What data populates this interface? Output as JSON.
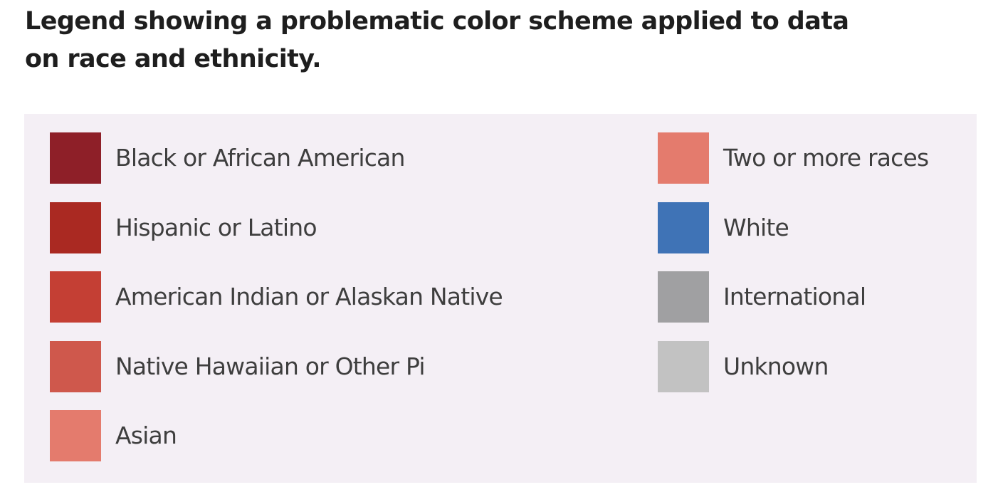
{
  "caption": "Legend showing a problematic color scheme applied to data on race and ethnicity.",
  "legend": {
    "left_column": [
      {
        "label": "Black or African American",
        "color": "#8e1f28"
      },
      {
        "label": "Hispanic or Latino",
        "color": "#aa2922"
      },
      {
        "label": "American Indian or Alaskan Native",
        "color": "#c43f34"
      },
      {
        "label": "Native Hawaiian or Other Pi",
        "color": "#cf584c"
      },
      {
        "label": "Asian",
        "color": "#e47b6d"
      }
    ],
    "right_column": [
      {
        "label": "Two or more races",
        "color": "#e47b6d"
      },
      {
        "label": "White",
        "color": "#3f73b6"
      },
      {
        "label": "International",
        "color": "#a0a0a2"
      },
      {
        "label": "Unknown",
        "color": "#c2c2c2"
      }
    ]
  }
}
